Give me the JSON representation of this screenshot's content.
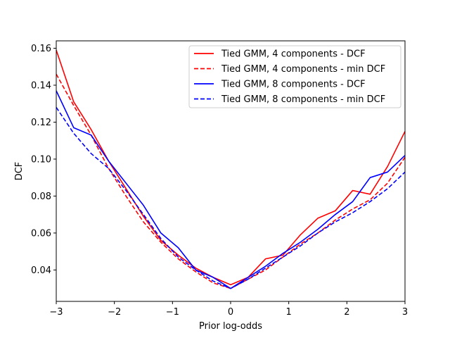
{
  "chart_data": {
    "type": "line",
    "title": "",
    "xlabel": "Prior log-odds",
    "ylabel": "DCF",
    "xlim": [
      -3,
      3
    ],
    "ylim": [
      0.023,
      0.164
    ],
    "x_ticks": [
      -3,
      -2,
      -1,
      0,
      1,
      2,
      3
    ],
    "x_tick_labels": [
      "−3",
      "−2",
      "−1",
      "0",
      "1",
      "2",
      "3"
    ],
    "y_ticks": [
      0.04,
      0.06,
      0.08,
      0.1,
      0.12,
      0.14,
      0.16
    ],
    "y_tick_labels": [
      "0.04",
      "0.06",
      "0.08",
      "0.10",
      "0.12",
      "0.14",
      "0.16"
    ],
    "grid": false,
    "legend_position": "top-right",
    "x": [
      -3.0,
      -2.7,
      -2.4,
      -2.1,
      -1.8,
      -1.5,
      -1.2,
      -0.9,
      -0.6,
      -0.3,
      0.0,
      0.3,
      0.6,
      0.9,
      1.2,
      1.5,
      1.8,
      2.1,
      2.4,
      2.7,
      3.0
    ],
    "series": [
      {
        "name": "Tied GMM, 4 components - DCF",
        "color": "#ff0000",
        "dash": "solid",
        "values": [
          0.159,
          0.131,
          0.116,
          0.099,
          0.084,
          0.069,
          0.056,
          0.048,
          0.041,
          0.036,
          0.032,
          0.036,
          0.046,
          0.048,
          0.059,
          0.068,
          0.072,
          0.083,
          0.081,
          0.096,
          0.115
        ]
      },
      {
        "name": "Tied GMM, 4 components - min DCF",
        "color": "#ff0000",
        "dash": "dashed",
        "values": [
          0.146,
          0.129,
          0.113,
          0.095,
          0.08,
          0.066,
          0.055,
          0.046,
          0.039,
          0.033,
          0.03,
          0.035,
          0.04,
          0.047,
          0.054,
          0.06,
          0.067,
          0.073,
          0.078,
          0.087,
          0.101
        ]
      },
      {
        "name": "Tied GMM, 8 components - DCF",
        "color": "#0000ff",
        "dash": "solid",
        "values": [
          0.137,
          0.117,
          0.113,
          0.099,
          0.087,
          0.075,
          0.06,
          0.052,
          0.04,
          0.036,
          0.03,
          0.036,
          0.042,
          0.049,
          0.055,
          0.062,
          0.07,
          0.077,
          0.09,
          0.093,
          0.102
        ]
      },
      {
        "name": "Tied GMM, 8 components - min DCF",
        "color": "#0000ff",
        "dash": "dashed",
        "values": [
          0.128,
          0.114,
          0.103,
          0.095,
          0.083,
          0.07,
          0.057,
          0.047,
          0.04,
          0.034,
          0.03,
          0.035,
          0.041,
          0.047,
          0.053,
          0.06,
          0.066,
          0.071,
          0.077,
          0.084,
          0.093
        ]
      }
    ]
  }
}
